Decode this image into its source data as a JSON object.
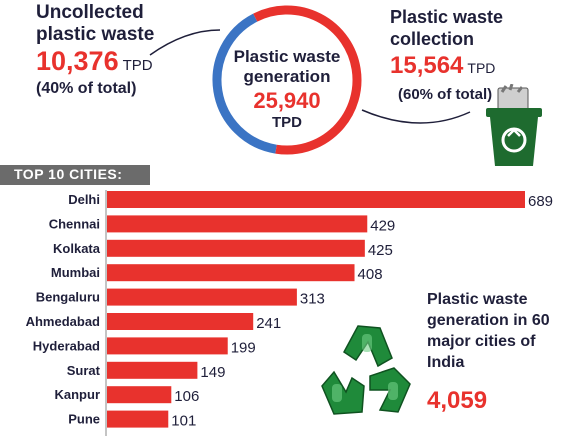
{
  "uncollected": {
    "title": "Uncollected plastic waste",
    "value": "10,376",
    "unit": "TPD",
    "share": "(40% of total)"
  },
  "generation": {
    "title": "Plastic waste generation",
    "value": "25,940",
    "unit": "TPD"
  },
  "collection": {
    "title": "Plastic waste collection",
    "value": "15,564",
    "unit": "TPD",
    "share": "(60% of total)"
  },
  "top_cities_label": "TOP 10 CITIES:",
  "major_cities": {
    "title": "Plastic waste generation in 60 major cities of India",
    "value": "4,059"
  },
  "colors": {
    "bar": "#e8322d",
    "donut_collected": "#e8322d",
    "donut_uncollected": "#3b74c4",
    "bin": "#1e6b2f",
    "recycle": "#1f8a3a",
    "band": "#6b6b6b"
  },
  "icons": [
    "recycle-bin-icon",
    "recycle-symbol-icon"
  ],
  "chart_data": [
    {
      "type": "pie",
      "labels": [
        "Uncollected plastic waste",
        "Plastic waste collection"
      ],
      "values": [
        10376,
        15564
      ],
      "units": "TPD"
    },
    {
      "type": "bar",
      "orientation": "horizontal",
      "categories": [
        "Delhi",
        "Chennai",
        "Kolkata",
        "Mumbai",
        "Bengaluru",
        "Ahmedabad",
        "Hyderabad",
        "Surat",
        "Kanpur",
        "Pune"
      ],
      "values": [
        689,
        429,
        425,
        408,
        313,
        241,
        199,
        149,
        106,
        101
      ],
      "title": "TOP 10 CITIES:"
    }
  ]
}
